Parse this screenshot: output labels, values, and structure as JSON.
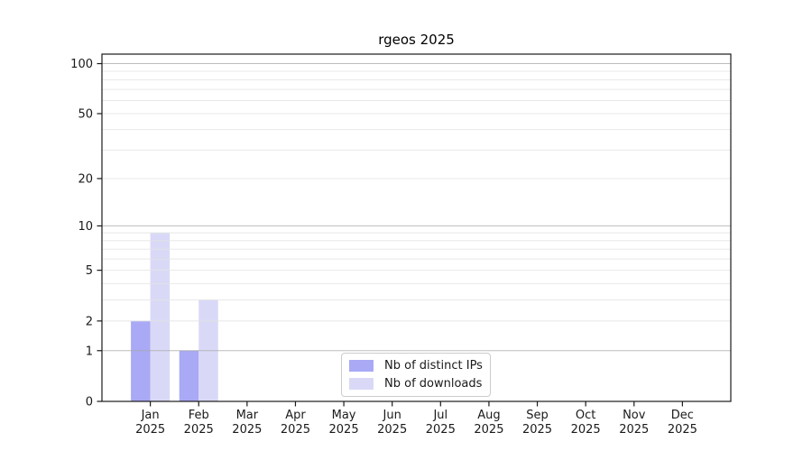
{
  "figure": {
    "background": "#ffffff"
  },
  "chart_data": {
    "type": "bar",
    "title": "rgeos 2025",
    "categories": [
      "Jan 2025",
      "Feb 2025",
      "Mar 2025",
      "Apr 2025",
      "May 2025",
      "Jun 2025",
      "Jul 2025",
      "Aug 2025",
      "Sep 2025",
      "Oct 2025",
      "Nov 2025",
      "Dec 2025"
    ],
    "series": [
      {
        "name": "Nb of distinct IPs",
        "color": "#a9a9f5",
        "values": [
          2,
          1,
          0,
          0,
          0,
          0,
          0,
          0,
          0,
          0,
          0,
          0
        ]
      },
      {
        "name": "Nb of downloads",
        "color": "#d9d9f7",
        "values": [
          9,
          3,
          0,
          0,
          0,
          0,
          0,
          0,
          0,
          0,
          0,
          0
        ]
      }
    ],
    "xlabel": "",
    "ylabel": "",
    "yscale": "log1p",
    "ylim": [
      0,
      114
    ],
    "yticks": [
      0,
      1,
      2,
      5,
      10,
      20,
      50,
      100
    ],
    "major_gridlines": [
      1,
      10,
      100
    ],
    "minor_gridlines": [
      2,
      3,
      4,
      5,
      6,
      7,
      8,
      9,
      20,
      30,
      40,
      50,
      60,
      70,
      80,
      90
    ],
    "grid": "on",
    "legend_position": "lower center",
    "colors": {
      "axis": "#1a1a1a",
      "tick_label": "#1a1a1a",
      "grid_major": "#a8a8a8",
      "grid_minor": "#e4e4e4"
    }
  }
}
